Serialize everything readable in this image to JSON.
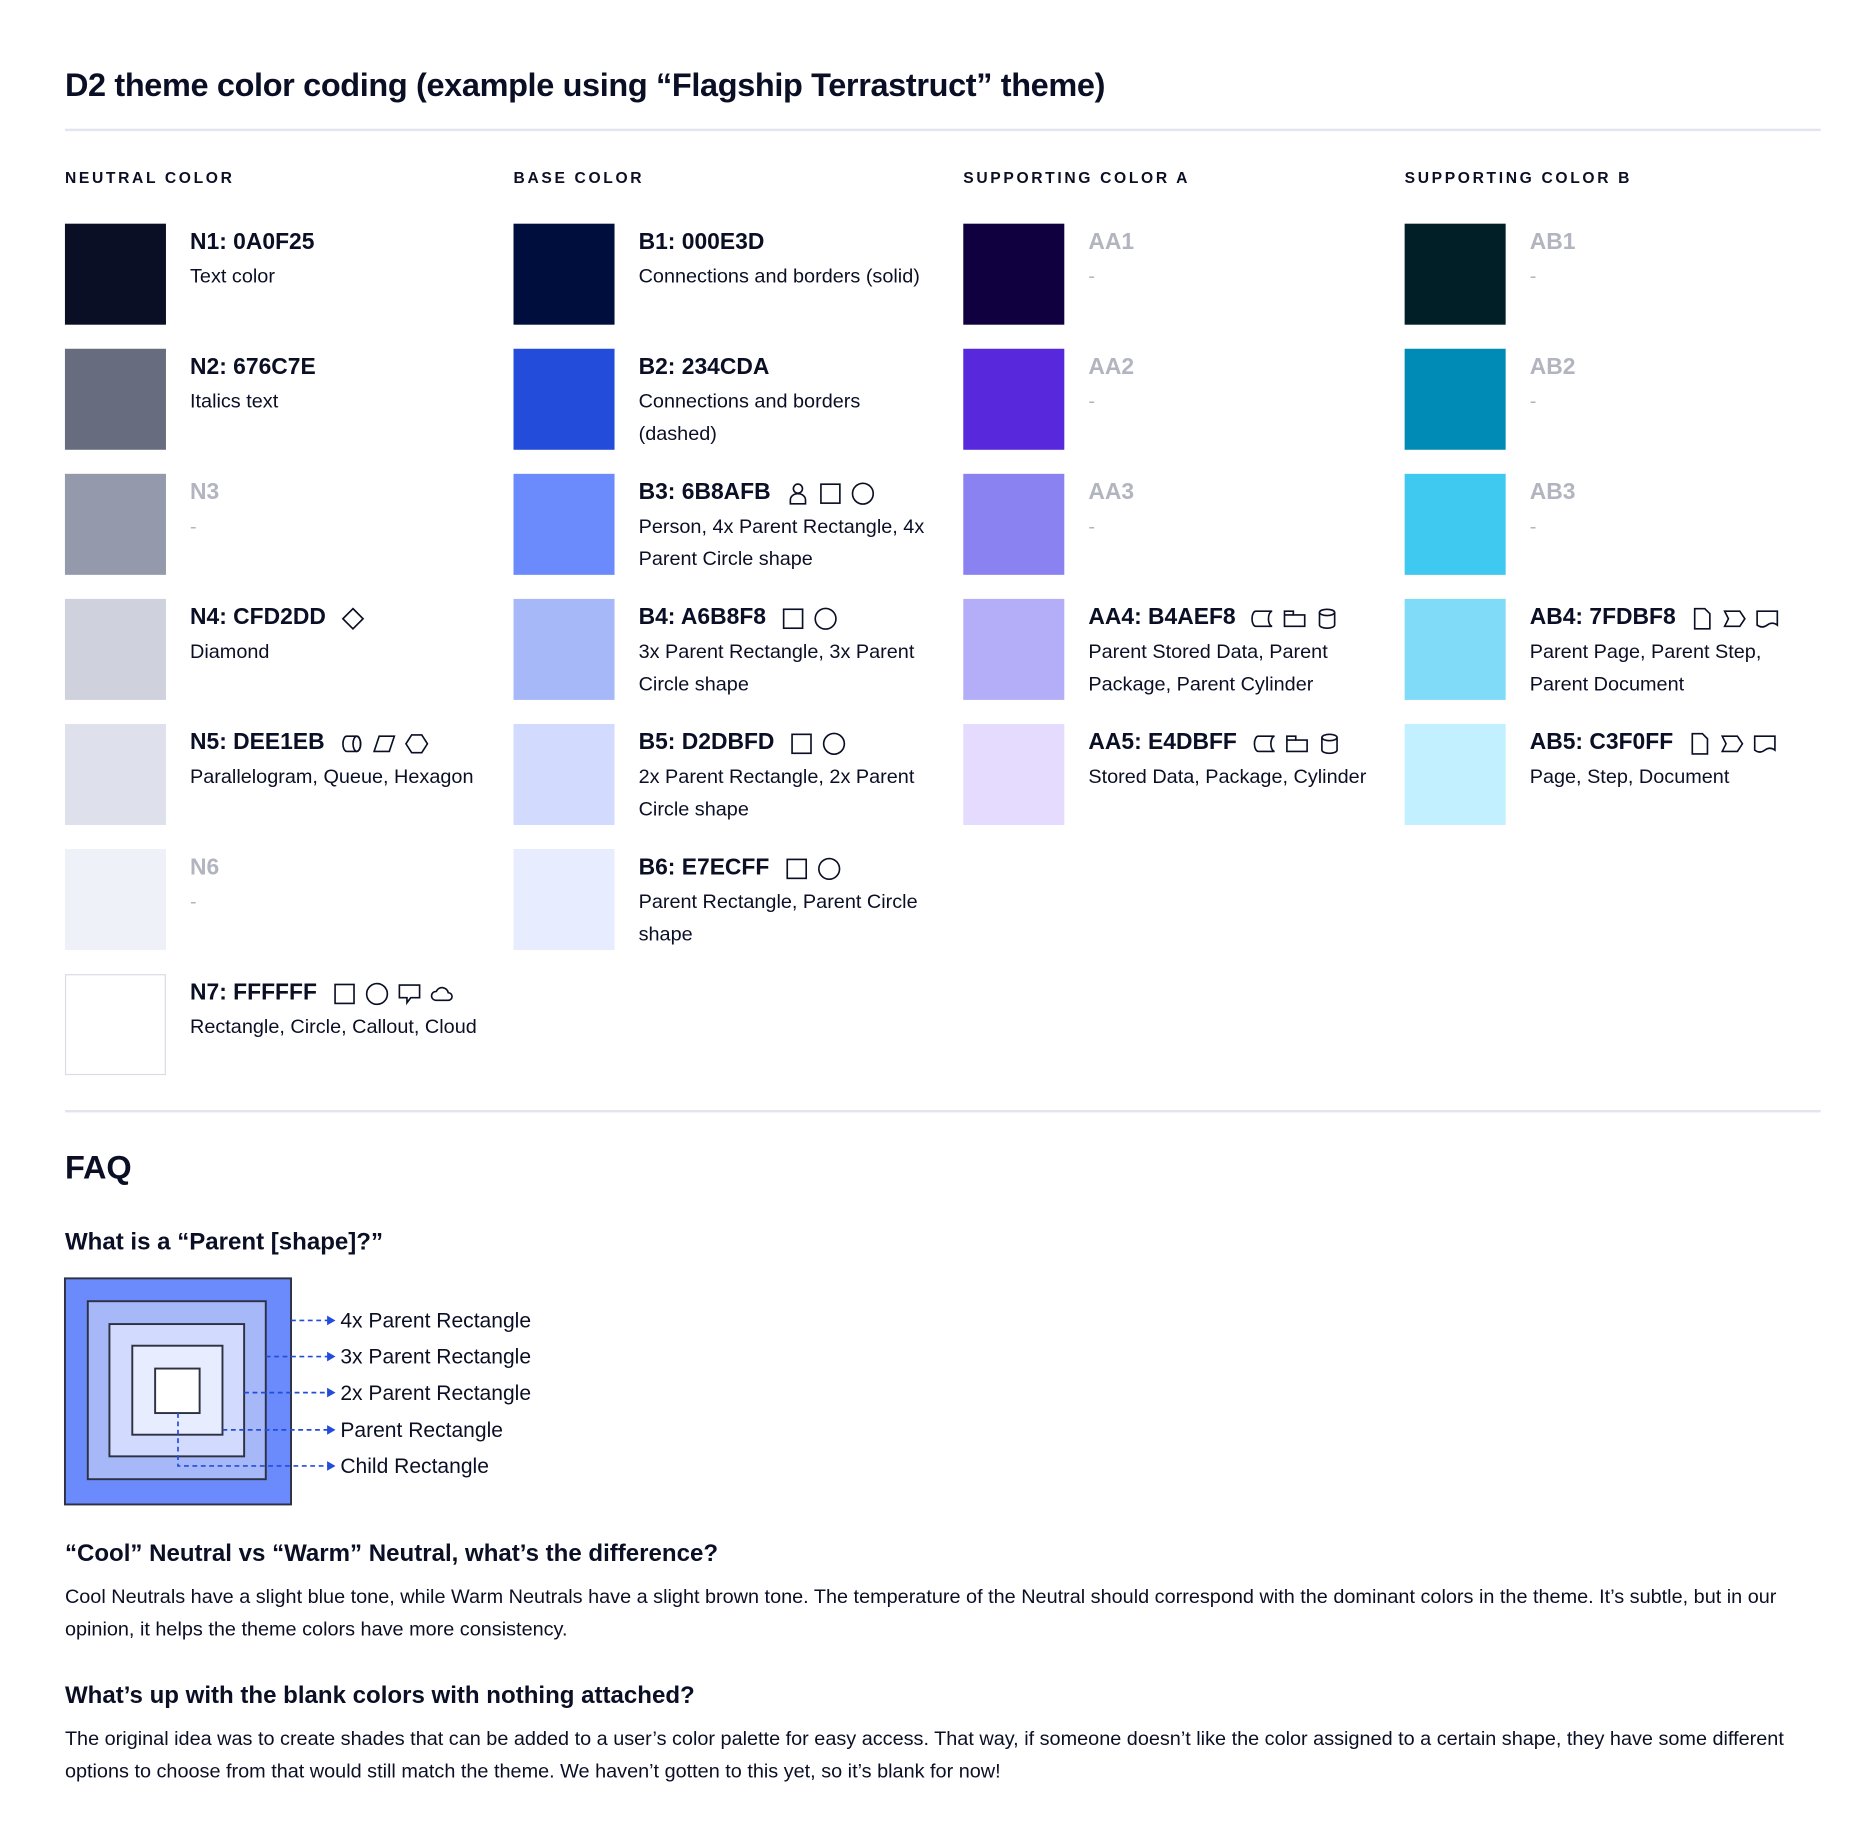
{
  "title": "D2 theme color coding (example using “Flagship Terrastruct” theme)",
  "columns": [
    {
      "header": "NEUTRAL COLOR",
      "items": [
        {
          "code": "N1: 0A0F25",
          "desc": "Text color",
          "color": "#0A0F25",
          "muted": false,
          "icons": []
        },
        {
          "code": "N2: 676C7E",
          "desc": "Italics text",
          "color": "#676C7E",
          "muted": false,
          "icons": []
        },
        {
          "code": "N3",
          "desc": "-",
          "color": "#9499AB",
          "muted": true,
          "icons": []
        },
        {
          "code": "N4: CFD2DD",
          "desc": "Diamond",
          "color": "#CFD2DD",
          "muted": false,
          "icons": [
            "diamond"
          ]
        },
        {
          "code": "N5: DEE1EB",
          "desc": "Parallelogram, Queue, Hexagon",
          "color": "#DEE1EB",
          "muted": false,
          "icons": [
            "queue",
            "parallelogram",
            "hexagon"
          ]
        },
        {
          "code": "N6",
          "desc": "-",
          "color": "#EEF1F8",
          "muted": true,
          "icons": []
        },
        {
          "code": "N7: FFFFFF",
          "desc": "Rectangle, Circle, Callout, Cloud",
          "color": "#FFFFFF",
          "muted": false,
          "icons": [
            "rectangle",
            "circle",
            "callout",
            "cloud"
          ]
        }
      ]
    },
    {
      "header": "BASE COLOR",
      "items": [
        {
          "code": "B1: 000E3D",
          "desc": "Connections and borders (solid)",
          "color": "#000E3D",
          "muted": false,
          "icons": []
        },
        {
          "code": "B2: 234CDA",
          "desc": "Connections and borders (dashed)",
          "color": "#234CDA",
          "muted": false,
          "icons": []
        },
        {
          "code": "B3: 6B8AFB",
          "desc": "Person, 4x Parent Rectangle, 4x Parent Circle shape",
          "color": "#6B8AFB",
          "muted": false,
          "icons": [
            "person",
            "rectangle",
            "circle"
          ]
        },
        {
          "code": "B4: A6B8F8",
          "desc": "3x Parent Rectangle, 3x Parent Circle shape",
          "color": "#A6B8F8",
          "muted": false,
          "icons": [
            "rectangle",
            "circle"
          ]
        },
        {
          "code": "B5: D2DBFD",
          "desc": "2x Parent Rectangle, 2x Parent Circle shape",
          "color": "#D2DBFD",
          "muted": false,
          "icons": [
            "rectangle",
            "circle"
          ]
        },
        {
          "code": "B6: E7ECFF",
          "desc": "Parent Rectangle, Parent Circle shape",
          "color": "#E7ECFF",
          "muted": false,
          "icons": [
            "rectangle",
            "circle"
          ]
        }
      ]
    },
    {
      "header": "SUPPORTING COLOR A",
      "items": [
        {
          "code": "AA1",
          "desc": "-",
          "color": "#10003F",
          "muted": true,
          "icons": []
        },
        {
          "code": "AA2",
          "desc": "-",
          "color": "#5828DC",
          "muted": true,
          "icons": []
        },
        {
          "code": "AA3",
          "desc": "-",
          "color": "#8B82F2",
          "muted": true,
          "icons": []
        },
        {
          "code": "AA4: B4AEF8",
          "desc": "Parent Stored Data, Parent Package,  Parent Cylinder",
          "color": "#B4AEF8",
          "muted": false,
          "icons": [
            "stored-data",
            "package",
            "cylinder"
          ]
        },
        {
          "code": "AA5: E4DBFF",
          "desc": "Stored Data, Package, Cylinder",
          "color": "#E4DBFF",
          "muted": false,
          "icons": [
            "stored-data",
            "package",
            "cylinder"
          ]
        }
      ]
    },
    {
      "header": "SUPPORTING COLOR B",
      "items": [
        {
          "code": "AB1",
          "desc": "-",
          "color": "#011F27",
          "muted": true,
          "icons": []
        },
        {
          "code": "AB2",
          "desc": "-",
          "color": "#008BB7",
          "muted": true,
          "icons": []
        },
        {
          "code": "AB3",
          "desc": "-",
          "color": "#3FC8F0",
          "muted": true,
          "icons": []
        },
        {
          "code": "AB4: 7FDBF8",
          "desc": "Parent Page, Parent Step, Parent Document",
          "color": "#7FDBF8",
          "muted": false,
          "icons": [
            "page",
            "step",
            "document"
          ]
        },
        {
          "code": "AB5: C3F0FF",
          "desc": "Page, Step, Document",
          "color": "#C3F0FF",
          "muted": false,
          "icons": [
            "page",
            "step",
            "document"
          ]
        }
      ]
    }
  ],
  "faq": {
    "title": "FAQ",
    "q1": "What is a “Parent [shape]?”",
    "diagram_labels": [
      "4x Parent Rectangle",
      "3x Parent Rectangle",
      "2x Parent Rectangle",
      "Parent Rectangle",
      "Child Rectangle"
    ],
    "diagram_colors": [
      "#6B8AFB",
      "#A6B8F8",
      "#D2DBFD",
      "#E7ECFF",
      "#FFFFFF"
    ],
    "arrow_color": "#234CDA",
    "q2": "“Cool” Neutral vs “Warm” Neutral, what’s the difference?",
    "a2": "Cool Neutrals have a slight blue tone, while Warm Neutrals have a slight brown tone. The temperature of the Neutral should correspond with the dominant colors in the theme. It’s subtle, but in our opinion, it helps the theme colors have more consistency.",
    "q3": "What’s up with the blank colors with nothing attached?",
    "a3": "The original idea was to create shades that can be added to a user’s color palette for easy access. That way, if someone doesn’t like the color assigned to a certain shape, they have some different options to choose from that would still match the theme. We haven’t gotten to this yet, so it’s blank for now!"
  }
}
